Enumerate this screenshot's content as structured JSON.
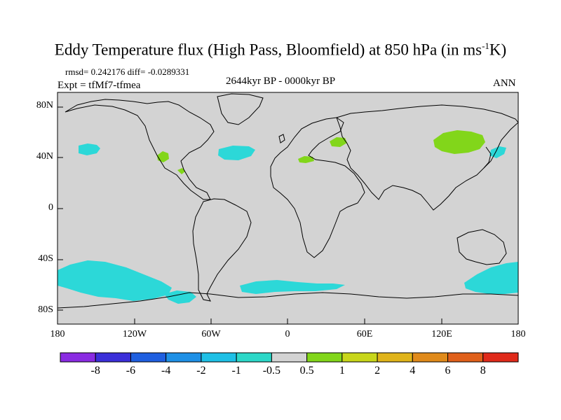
{
  "title": {
    "main": "Eddy Temperature flux (High Pass, Bloomfield) at 850 hPa (in ms",
    "sup": "-1",
    "end": "K)"
  },
  "stats": {
    "rmsd_diff": "rmsd= 0.242176 diff= -0.0289331",
    "expt": "Expt = tfMf7-tfmea",
    "period": "2644kyr BP - 0000kyr BP",
    "season": "ANN"
  },
  "axes": {
    "y_ticks": [
      "80N",
      "40N",
      "0",
      "40S",
      "80S"
    ],
    "x_ticks": [
      "180",
      "120W",
      "60W",
      "0",
      "60E",
      "120E",
      "180"
    ]
  },
  "colorbar": {
    "colors": [
      "#8a2be2",
      "#3b2fd9",
      "#1f5fe0",
      "#1e90e6",
      "#1ec0e6",
      "#2cd8c8",
      "#d3d3d3",
      "#82d61a",
      "#c8d61a",
      "#e0b41a",
      "#e08a1a",
      "#e0601a",
      "#e02a1a"
    ],
    "labels": [
      "-8",
      "-6",
      "-4",
      "-2",
      "-1",
      "-0.5",
      "0.5",
      "1",
      "2",
      "4",
      "6",
      "8"
    ]
  },
  "map_colors": {
    "land_ocean_fill": "#d3d3d3",
    "negative": "#2cd8d8",
    "positive": "#82d61a",
    "coast": "#000000"
  }
}
